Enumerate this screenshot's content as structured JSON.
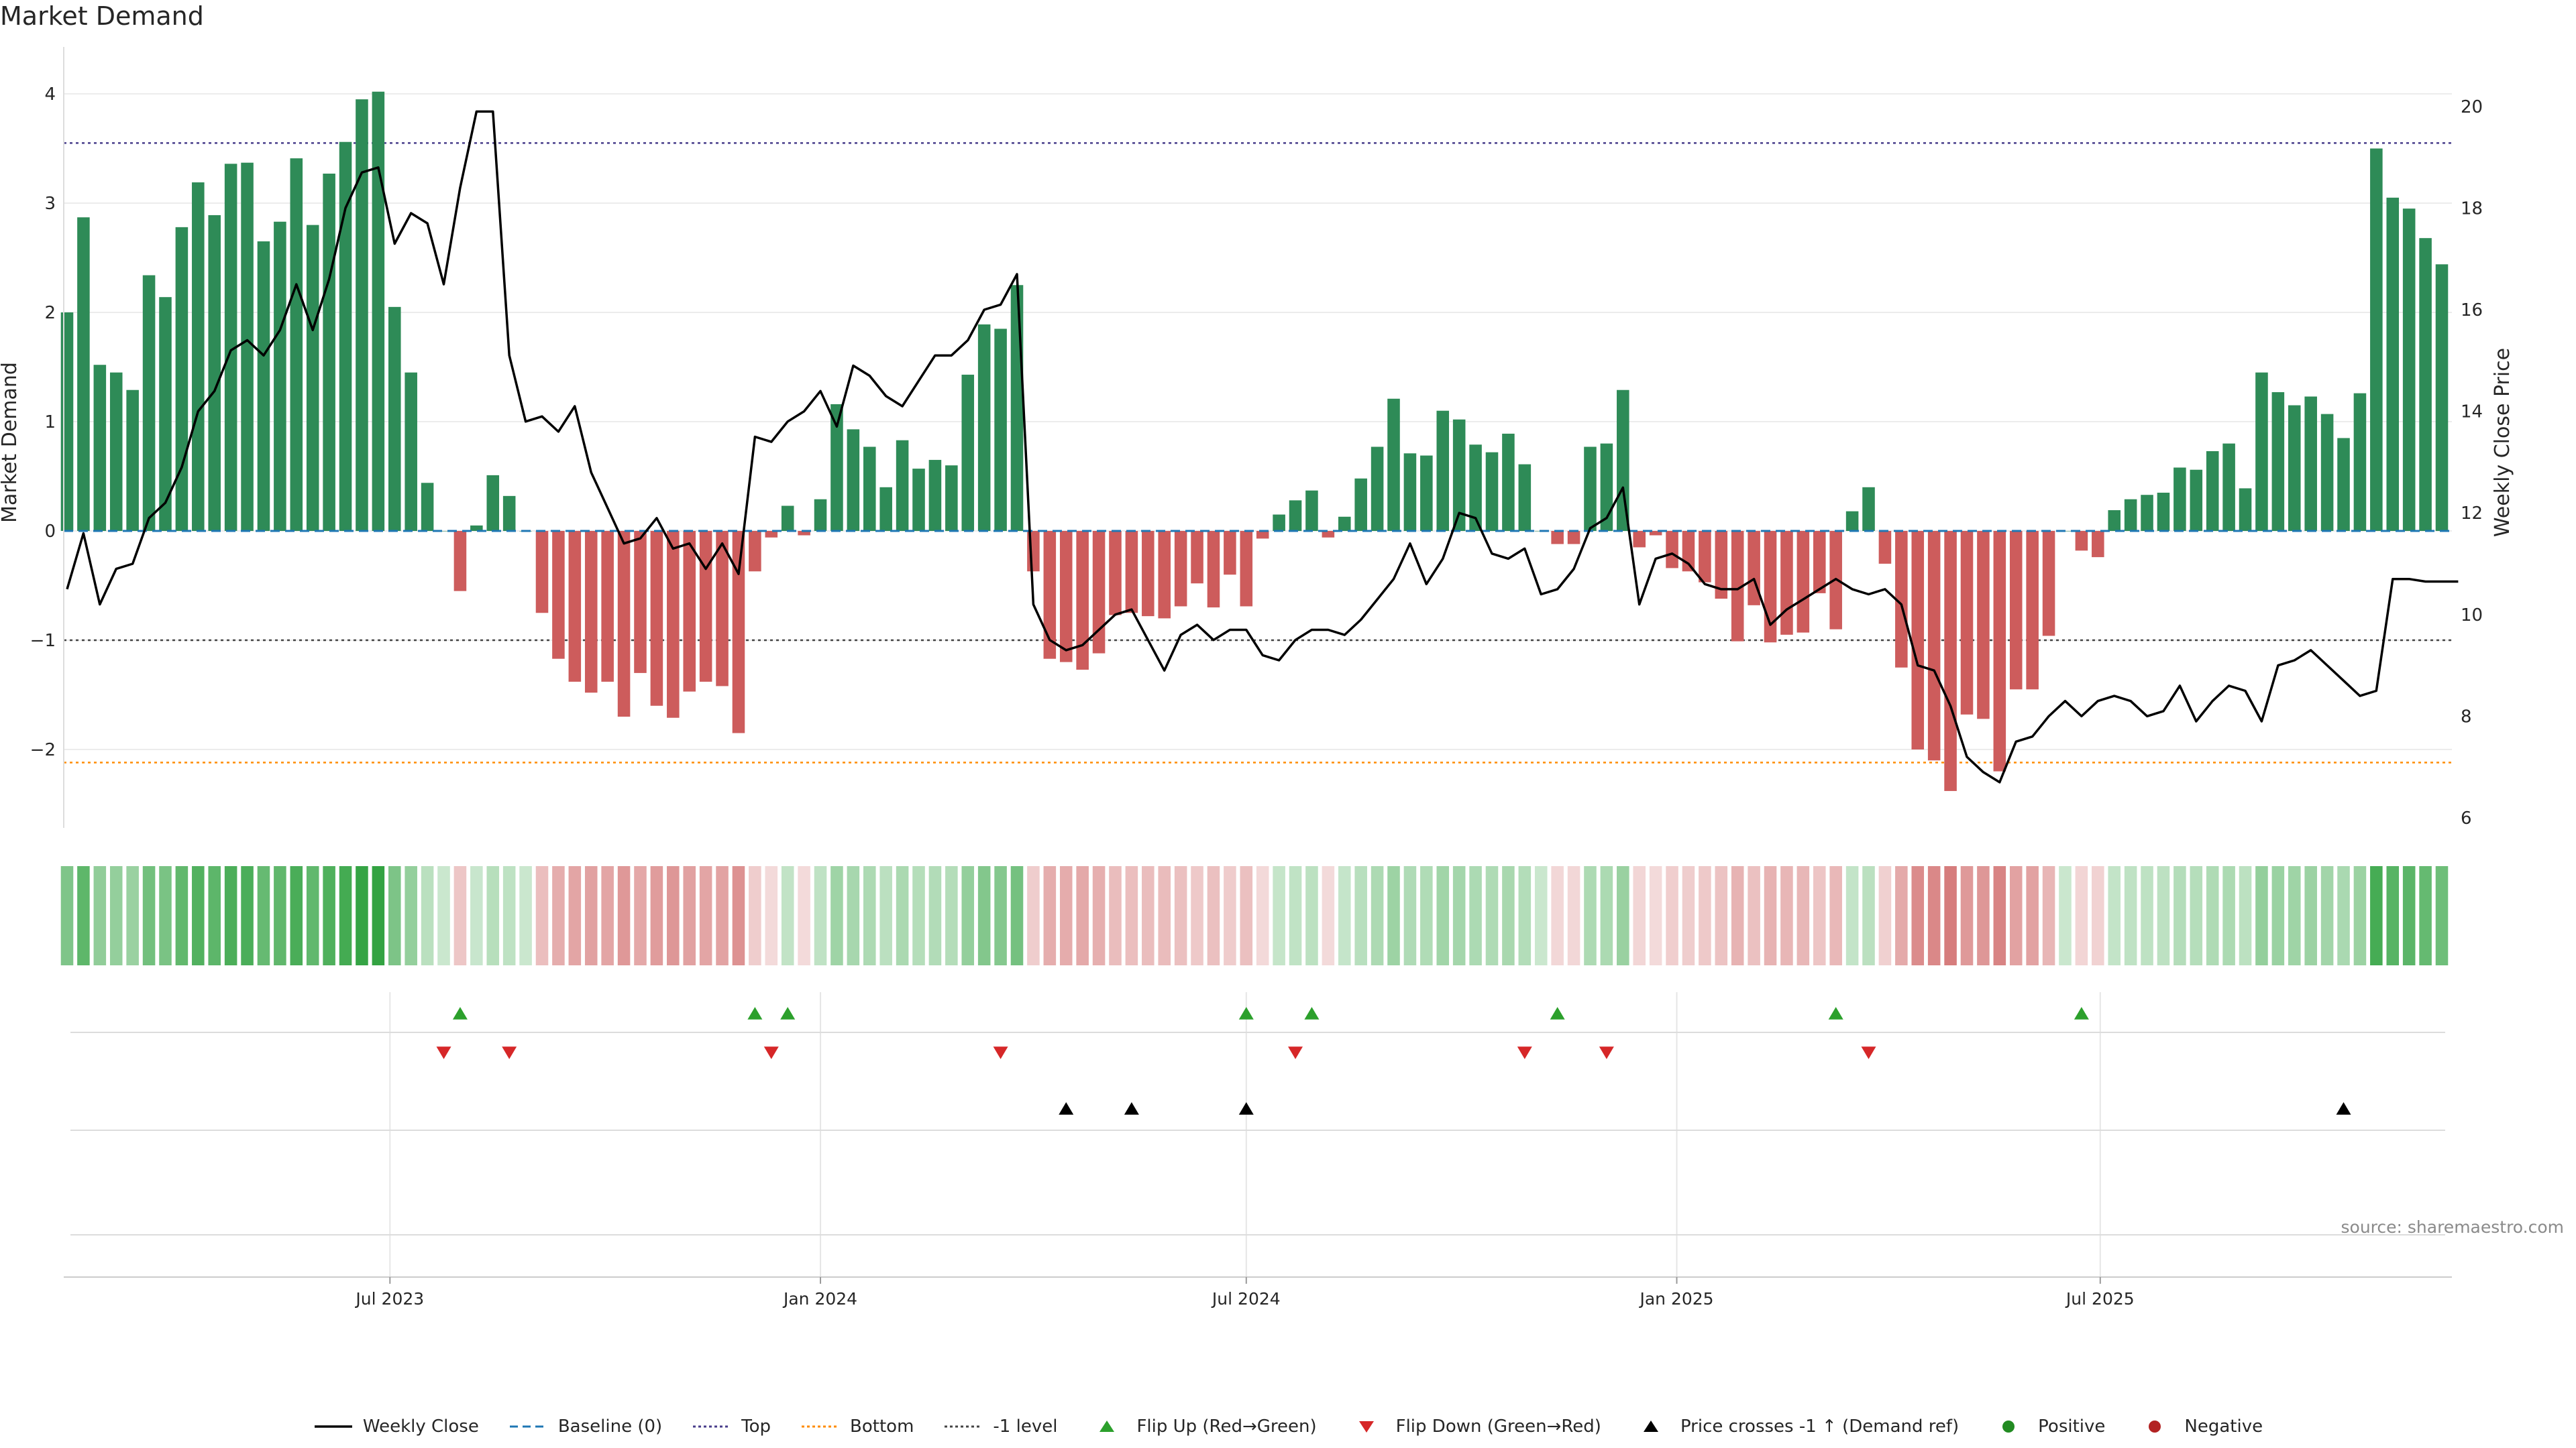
{
  "title": "Market Demand",
  "source": "source: sharemaestro.com",
  "colors": {
    "positive": "#2e8b57",
    "negative": "#cd5c5c",
    "price": "#000000",
    "baseline": "#1f77b4",
    "top": "#483d8b",
    "bottom": "#ff8c00",
    "minus1": "#444444",
    "flip_up": "#2ca02c",
    "flip_down": "#d62728",
    "cross": "#000000",
    "pos_dot": "#228b22",
    "neg_dot": "#b22222"
  },
  "legend": [
    {
      "label": "Weekly Close",
      "kind": "line-solid",
      "color": "#000000"
    },
    {
      "label": "Baseline (0)",
      "kind": "line-dash",
      "color": "#1f77b4"
    },
    {
      "label": "Top",
      "kind": "line-dot",
      "color": "#483d8b"
    },
    {
      "label": "Bottom",
      "kind": "line-dot",
      "color": "#ff8c00"
    },
    {
      "label": "-1 level",
      "kind": "line-dot",
      "color": "#444444"
    },
    {
      "label": "Flip Up (Red→Green)",
      "kind": "tri-up",
      "color": "#2ca02c"
    },
    {
      "label": "Flip Down (Green→Red)",
      "kind": "tri-down",
      "color": "#d62728"
    },
    {
      "label": "Price crosses -1 ↑ (Demand ref)",
      "kind": "tri-up",
      "color": "#000000"
    },
    {
      "label": "Positive",
      "kind": "dot",
      "color": "#228b22"
    },
    {
      "label": "Negative",
      "kind": "dot",
      "color": "#b22222"
    }
  ],
  "chart_data": {
    "type": "bar",
    "title": "Market Demand",
    "ylabel": "Market Demand",
    "y2label": "Weekly Close Price",
    "ylim": [
      -2.7,
      4.2
    ],
    "y2lim": [
      5.8,
      20.8
    ],
    "yticks": [
      -2,
      -1,
      0,
      1,
      2,
      3,
      4
    ],
    "y2ticks": [
      6,
      8,
      10,
      12,
      14,
      16,
      18,
      20
    ],
    "reference_lines": {
      "baseline": 0,
      "top": 3.55,
      "bottom": -2.12,
      "minus1": -1
    },
    "x_start": "2023-02-13",
    "x_step_days": 7,
    "x_tick_labels": [
      {
        "label": "Jul 2023",
        "date": "2023-07-01"
      },
      {
        "label": "Jan 2024",
        "date": "2024-01-01"
      },
      {
        "label": "Jul 2024",
        "date": "2024-07-01"
      },
      {
        "label": "Jan 2025",
        "date": "2025-01-01"
      },
      {
        "label": "Jul 2025",
        "date": "2025-07-01"
      }
    ],
    "demand": [
      2.0,
      2.87,
      1.52,
      1.45,
      1.29,
      2.34,
      2.14,
      2.78,
      3.19,
      2.89,
      3.36,
      3.37,
      2.65,
      2.83,
      3.41,
      2.8,
      3.27,
      3.56,
      3.95,
      4.02,
      2.05,
      1.45,
      0.44,
      0.0,
      -0.55,
      0.05,
      0.51,
      0.32,
      0.0,
      -0.75,
      -1.17,
      -1.38,
      -1.48,
      -1.38,
      -1.7,
      -1.3,
      -1.6,
      -1.71,
      -1.47,
      -1.38,
      -1.42,
      -1.85,
      -0.37,
      -0.06,
      0.23,
      -0.04,
      0.29,
      1.16,
      0.93,
      0.77,
      0.4,
      0.83,
      0.57,
      0.65,
      0.6,
      1.43,
      1.89,
      1.85,
      2.25,
      -0.37,
      -1.17,
      -1.2,
      -1.27,
      -1.12,
      -0.77,
      -0.75,
      -0.78,
      -0.8,
      -0.69,
      -0.48,
      -0.7,
      -0.4,
      -0.69,
      -0.07,
      0.15,
      0.28,
      0.37,
      -0.06,
      0.13,
      0.48,
      0.77,
      1.21,
      0.71,
      0.69,
      1.1,
      1.02,
      0.79,
      0.72,
      0.89,
      0.61,
      0.0,
      -0.12,
      -0.12,
      0.77,
      0.8,
      1.29,
      -0.15,
      -0.04,
      -0.34,
      -0.37,
      -0.47,
      -0.62,
      -1.01,
      -0.68,
      -1.02,
      -0.95,
      -0.93,
      -0.57,
      -0.9,
      0.18,
      0.4,
      -0.3,
      -1.25,
      -2.0,
      -2.1,
      -2.38,
      -1.68,
      -1.72,
      -2.2,
      -1.45,
      -1.45,
      -0.96,
      0.0,
      -0.18,
      -0.24,
      0.19,
      0.29,
      0.33,
      0.35,
      0.58,
      0.56,
      0.73,
      0.8,
      0.39,
      1.45,
      1.27,
      1.15,
      1.23,
      1.07,
      0.85,
      1.26,
      3.5,
      3.05,
      2.95,
      2.68,
      2.44
    ],
    "price": [
      10.5,
      11.6,
      10.2,
      10.9,
      11.0,
      11.9,
      12.2,
      12.9,
      14.0,
      14.4,
      15.2,
      15.4,
      15.1,
      15.6,
      16.5,
      15.6,
      16.6,
      18.0,
      18.7,
      18.8,
      17.3,
      17.9,
      17.7,
      16.5,
      18.4,
      19.9,
      19.9,
      15.1,
      13.8,
      13.9,
      13.6,
      14.1,
      12.8,
      12.1,
      11.4,
      11.5,
      11.9,
      11.3,
      11.4,
      10.9,
      11.4,
      10.8,
      13.5,
      13.4,
      13.8,
      14.0,
      14.4,
      13.7,
      14.9,
      14.7,
      14.3,
      14.1,
      14.6,
      15.1,
      15.1,
      15.4,
      16.0,
      16.1,
      16.7,
      10.2,
      9.5,
      9.3,
      9.4,
      9.7,
      10.0,
      10.1,
      9.5,
      8.9,
      9.6,
      9.8,
      9.5,
      9.7,
      9.7,
      9.2,
      9.1,
      9.5,
      9.7,
      9.7,
      9.6,
      9.9,
      10.3,
      10.7,
      11.4,
      10.6,
      11.1,
      12.0,
      11.9,
      11.2,
      11.1,
      11.3,
      10.4,
      10.5,
      10.9,
      11.7,
      11.9,
      12.5,
      10.2,
      11.1,
      11.2,
      11.0,
      10.6,
      10.5,
      10.5,
      10.7,
      9.8,
      10.1,
      10.3,
      10.5,
      10.7,
      10.5,
      10.4,
      10.5,
      10.2,
      9.0,
      8.9,
      8.2,
      7.2,
      6.9,
      6.7,
      7.5,
      7.6,
      8.0,
      8.3,
      8.0,
      8.3,
      8.4,
      8.3,
      8.0,
      8.1,
      8.6,
      7.9,
      8.3,
      8.6,
      8.5,
      7.9,
      9.0,
      9.1,
      9.3,
      9.0,
      8.7,
      8.4,
      8.5,
      10.7,
      10.7,
      10.65,
      10.65,
      10.65
    ],
    "flip_up_weeks": [
      24,
      42,
      44,
      72,
      76,
      91,
      108,
      123
    ],
    "flip_down_weeks": [
      23,
      27,
      43,
      57,
      75,
      89,
      94,
      110
    ],
    "cross_up_weeks": [
      61,
      65,
      72,
      139
    ]
  }
}
